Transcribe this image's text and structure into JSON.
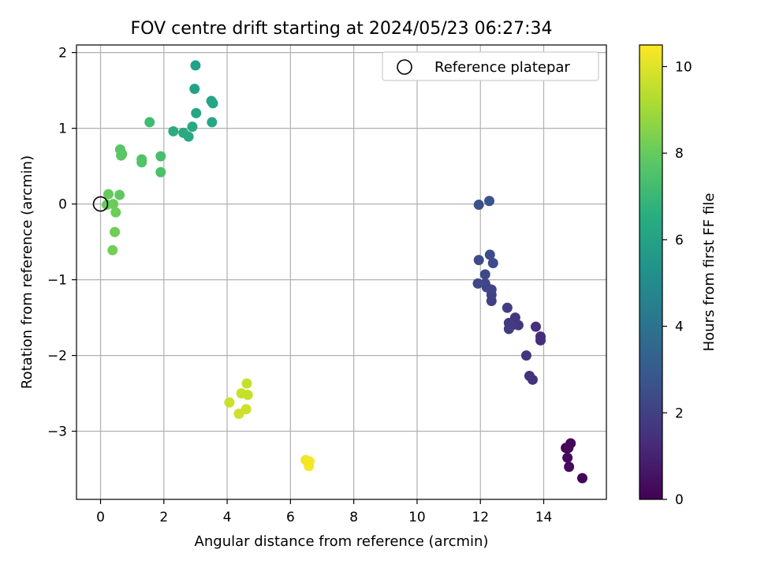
{
  "chart_data": {
    "type": "scatter",
    "title": "FOV centre drift starting at 2024/05/23 06:27:34",
    "xlabel": "Angular distance from reference (arcmin)",
    "ylabel": "Rotation from reference (arcmin)",
    "xlim": [
      -0.76,
      15.98
    ],
    "ylim": [
      -3.9,
      2.1
    ],
    "xticks": [
      0,
      2,
      4,
      6,
      8,
      10,
      12,
      14
    ],
    "yticks": [
      -3,
      -2,
      -1,
      0,
      1,
      2
    ],
    "xtick_labels": [
      "0",
      "2",
      "4",
      "6",
      "8",
      "10",
      "12",
      "14"
    ],
    "ytick_labels": [
      "−3",
      "−2",
      "−1",
      "0",
      "1",
      "2"
    ],
    "grid": true,
    "legend": {
      "position": "top-right",
      "label": "Reference platepar"
    },
    "reference": {
      "x": 0,
      "y": 0
    },
    "colorbar": {
      "label": "Hours from first FF file",
      "min": 0,
      "max": 10.5,
      "ticks": [
        0,
        2,
        4,
        6,
        8,
        10
      ],
      "tick_labels": [
        "0",
        "2",
        "4",
        "6",
        "8",
        "10"
      ],
      "colormap": "viridis"
    },
    "points": [
      {
        "x": 14.7,
        "y": -3.22,
        "h": 0.1
      },
      {
        "x": 14.85,
        "y": -3.16,
        "h": 0.15
      },
      {
        "x": 14.78,
        "y": -3.22,
        "h": 0.2
      },
      {
        "x": 14.75,
        "y": -3.35,
        "h": 0.25
      },
      {
        "x": 14.8,
        "y": -3.47,
        "h": 0.3
      },
      {
        "x": 15.22,
        "y": -3.62,
        "h": 0.05
      },
      {
        "x": 13.9,
        "y": -1.75,
        "h": 1.3
      },
      {
        "x": 13.9,
        "y": -1.8,
        "h": 1.35
      },
      {
        "x": 13.75,
        "y": -1.62,
        "h": 1.45
      },
      {
        "x": 13.55,
        "y": -2.27,
        "h": 1.5
      },
      {
        "x": 13.65,
        "y": -2.32,
        "h": 1.55
      },
      {
        "x": 13.45,
        "y": -2.0,
        "h": 1.6
      },
      {
        "x": 13.1,
        "y": -1.5,
        "h": 1.65
      },
      {
        "x": 13.2,
        "y": -1.6,
        "h": 1.7
      },
      {
        "x": 13.0,
        "y": -1.6,
        "h": 1.75
      },
      {
        "x": 12.9,
        "y": -1.57,
        "h": 1.8
      },
      {
        "x": 12.9,
        "y": -1.65,
        "h": 1.85
      },
      {
        "x": 12.85,
        "y": -1.37,
        "h": 1.9
      },
      {
        "x": 12.35,
        "y": -1.28,
        "h": 2.0
      },
      {
        "x": 12.35,
        "y": -1.2,
        "h": 2.05
      },
      {
        "x": 12.35,
        "y": -1.13,
        "h": 2.1
      },
      {
        "x": 12.2,
        "y": -1.1,
        "h": 2.15
      },
      {
        "x": 12.15,
        "y": -1.05,
        "h": 2.2
      },
      {
        "x": 11.92,
        "y": -1.05,
        "h": 2.25
      },
      {
        "x": 12.15,
        "y": -0.93,
        "h": 2.3
      },
      {
        "x": 12.4,
        "y": -0.78,
        "h": 2.35
      },
      {
        "x": 11.95,
        "y": -0.74,
        "h": 2.4
      },
      {
        "x": 12.3,
        "y": -0.67,
        "h": 2.45
      },
      {
        "x": 11.95,
        "y": -0.01,
        "h": 2.6
      },
      {
        "x": 12.28,
        "y": 0.04,
        "h": 2.7
      },
      {
        "x": 3.0,
        "y": 1.83,
        "h": 6.0
      },
      {
        "x": 2.97,
        "y": 1.52,
        "h": 6.05
      },
      {
        "x": 3.5,
        "y": 1.36,
        "h": 6.1
      },
      {
        "x": 3.55,
        "y": 1.33,
        "h": 6.15
      },
      {
        "x": 3.02,
        "y": 1.2,
        "h": 6.2
      },
      {
        "x": 3.52,
        "y": 1.08,
        "h": 6.25
      },
      {
        "x": 2.9,
        "y": 1.02,
        "h": 6.3
      },
      {
        "x": 2.78,
        "y": 0.89,
        "h": 6.35
      },
      {
        "x": 2.62,
        "y": 0.94,
        "h": 6.4
      },
      {
        "x": 2.3,
        "y": 0.96,
        "h": 6.5
      },
      {
        "x": 1.55,
        "y": 1.08,
        "h": 7.2
      },
      {
        "x": 1.9,
        "y": 0.63,
        "h": 7.4
      },
      {
        "x": 1.9,
        "y": 0.42,
        "h": 7.5
      },
      {
        "x": 1.3,
        "y": 0.59,
        "h": 7.6
      },
      {
        "x": 1.3,
        "y": 0.55,
        "h": 7.65
      },
      {
        "x": 0.62,
        "y": 0.72,
        "h": 7.7
      },
      {
        "x": 0.68,
        "y": 0.66,
        "h": 7.75
      },
      {
        "x": 0.65,
        "y": 0.64,
        "h": 7.8
      },
      {
        "x": 0.6,
        "y": 0.12,
        "h": 7.9
      },
      {
        "x": 0.25,
        "y": 0.13,
        "h": 8.0
      },
      {
        "x": 0.2,
        "y": -0.01,
        "h": 8.05
      },
      {
        "x": 0.4,
        "y": 0.0,
        "h": 8.1
      },
      {
        "x": 0.48,
        "y": -0.11,
        "h": 8.15
      },
      {
        "x": 0.45,
        "y": -0.37,
        "h": 8.2
      },
      {
        "x": 0.38,
        "y": -0.61,
        "h": 8.25
      },
      {
        "x": 4.62,
        "y": -2.37,
        "h": 9.6
      },
      {
        "x": 4.65,
        "y": -2.52,
        "h": 9.62
      },
      {
        "x": 4.45,
        "y": -2.5,
        "h": 9.65
      },
      {
        "x": 4.07,
        "y": -2.62,
        "h": 9.68
      },
      {
        "x": 4.6,
        "y": -2.71,
        "h": 9.7
      },
      {
        "x": 4.37,
        "y": -2.77,
        "h": 9.72
      },
      {
        "x": 6.48,
        "y": -3.38,
        "h": 10.3
      },
      {
        "x": 6.6,
        "y": -3.4,
        "h": 10.35
      },
      {
        "x": 6.58,
        "y": -3.46,
        "h": 10.4
      }
    ]
  }
}
